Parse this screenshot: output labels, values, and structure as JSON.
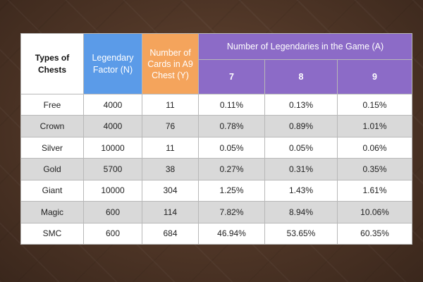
{
  "headers": {
    "types": "Types of Chests",
    "factor": "Legendary Factor (N)",
    "cards": "Number of Cards in A9 Chest (Y)",
    "legendaries": "Number of Legendaries in the Game (A)",
    "levels": [
      "7",
      "8",
      "9"
    ]
  },
  "rows": [
    {
      "type": "Free",
      "factor": "4000",
      "cards": "11",
      "v7": "0.11%",
      "v8": "0.13%",
      "v9": "0.15%"
    },
    {
      "type": "Crown",
      "factor": "4000",
      "cards": "76",
      "v7": "0.78%",
      "v8": "0.89%",
      "v9": "1.01%"
    },
    {
      "type": "Silver",
      "factor": "10000",
      "cards": "11",
      "v7": "0.05%",
      "v8": "0.05%",
      "v9": "0.06%"
    },
    {
      "type": "Gold",
      "factor": "5700",
      "cards": "38",
      "v7": "0.27%",
      "v8": "0.31%",
      "v9": "0.35%"
    },
    {
      "type": "Giant",
      "factor": "10000",
      "cards": "304",
      "v7": "1.25%",
      "v8": "1.43%",
      "v9": "1.61%"
    },
    {
      "type": "Magic",
      "factor": "600",
      "cards": "114",
      "v7": "7.82%",
      "v8": "8.94%",
      "v9": "10.06%"
    },
    {
      "type": "SMC",
      "factor": "600",
      "cards": "684",
      "v7": "46.94%",
      "v8": "53.65%",
      "v9": "60.35%"
    }
  ],
  "colors": {
    "factor_header": "#5b9be8",
    "cards_header": "#f4a45c",
    "legendaries_header": "#8c6bc7",
    "alt_row": "#d9d9d9",
    "background": "#4e3526"
  }
}
